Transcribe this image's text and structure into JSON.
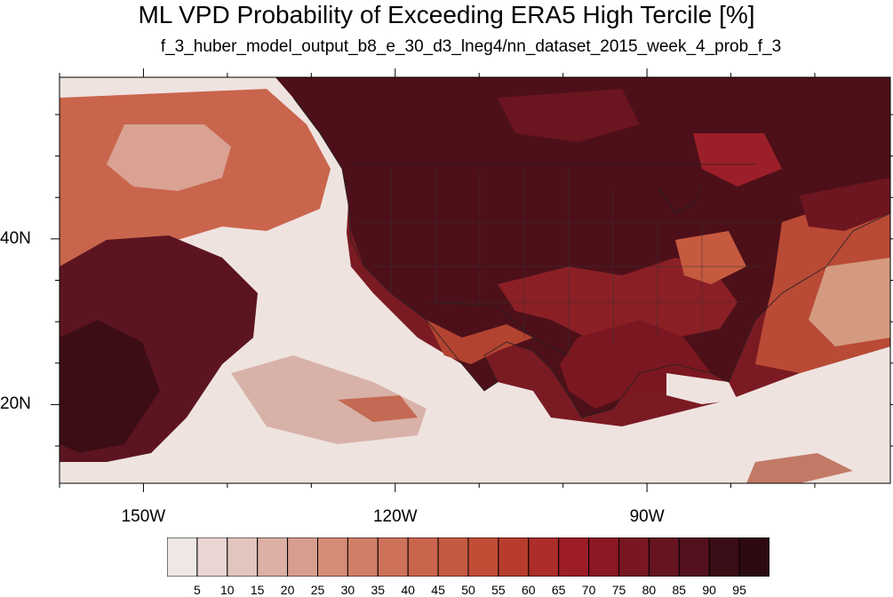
{
  "chart_data": {
    "type": "heatmap",
    "title": "ML VPD Probability of Exceeding ERA5 High Tercile [%]",
    "subtitle": "f_3_huber_model_output_b8_e_30_d3_lneg4/nn_dataset_2015_week_4_prob_f_3",
    "lon_range": [
      -160,
      -61
    ],
    "lat_range": [
      10.5,
      59.5
    ],
    "lon_ticks": [
      {
        "value": -150,
        "label": "150W"
      },
      {
        "value": -120,
        "label": "120W"
      },
      {
        "value": -90,
        "label": "90W"
      }
    ],
    "lat_ticks": [
      {
        "value": 40,
        "label": "40N"
      },
      {
        "value": 20,
        "label": "20N"
      }
    ],
    "colorbar": {
      "levels": [
        5,
        10,
        15,
        20,
        25,
        30,
        35,
        40,
        45,
        50,
        55,
        60,
        65,
        70,
        75,
        80,
        85,
        90,
        95
      ],
      "colors": [
        "#efe7e6",
        "#e9d6d3",
        "#e2c5bd",
        "#dcb0a4",
        "#d79e8e",
        "#d48c77",
        "#d07e66",
        "#cd715a",
        "#c9654d",
        "#c55a42",
        "#c14d37",
        "#b73c2e",
        "#ac2d29",
        "#9d1d26",
        "#8b1824",
        "#781623",
        "#651420",
        "#52111d",
        "#3b0d16",
        "#2c0a10"
      ]
    },
    "regions_description_colors": {
      "land_interior": "#5a1420",
      "ocean_pacific_high": "#8a2a2a",
      "ocean_low": "#efe7e6"
    }
  }
}
